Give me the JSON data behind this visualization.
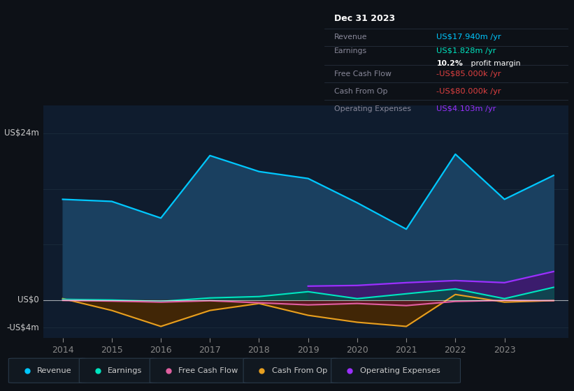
{
  "bg_color": "#0d1117",
  "plot_bg_color": "#0f1c2e",
  "grid_color": "#1a2a3a",
  "years": [
    2014,
    2015,
    2016,
    2017,
    2018,
    2019,
    2019.01,
    2020,
    2021,
    2022,
    2023,
    2023.99
  ],
  "years_all": [
    2014,
    2015,
    2016,
    2017,
    2018,
    2019,
    2020,
    2021,
    2022,
    2023,
    2024
  ],
  "revenue": [
    14.5,
    14.2,
    11.8,
    20.8,
    18.5,
    17.5,
    14.0,
    10.2,
    21.0,
    14.5,
    17.94
  ],
  "earnings": [
    0.1,
    0.0,
    -0.2,
    0.3,
    0.5,
    1.2,
    0.2,
    0.9,
    1.6,
    0.2,
    1.828
  ],
  "free_cash_flow": [
    -0.05,
    -0.15,
    -0.3,
    -0.1,
    -0.4,
    -0.7,
    -0.5,
    -0.8,
    -0.2,
    -0.05,
    -0.085
  ],
  "cash_from_op": [
    0.2,
    -1.5,
    -3.8,
    -1.5,
    -0.5,
    -2.2,
    -3.2,
    -3.8,
    0.8,
    -0.3,
    -0.08
  ],
  "operating_expenses_x": [
    2019,
    2020,
    2021,
    2022,
    2023,
    2024
  ],
  "operating_expenses_y": [
    2.0,
    2.1,
    2.5,
    2.8,
    2.5,
    4.103
  ],
  "revenue_color": "#00c8ff",
  "earnings_color": "#00e5c0",
  "fcf_color": "#e060a0",
  "cashop_color": "#e8a020",
  "opex_color": "#9b30ff",
  "revenue_fill": "#1a4060",
  "earnings_fill": "#005545",
  "fcf_fill": "#6a1030",
  "cashop_fill": "#4a2800",
  "opex_fill": "#3d1a6e",
  "ylim_min": -5.5,
  "ylim_max": 28,
  "zero_line_color": "#ffffff",
  "xlabel_years": [
    2014,
    2015,
    2016,
    2017,
    2018,
    2019,
    2020,
    2021,
    2022,
    2023
  ],
  "info_box": {
    "date": "Dec 31 2023",
    "revenue_label": "Revenue",
    "revenue_val": "US$17.940m",
    "revenue_unit": " /yr",
    "revenue_color": "#00c8ff",
    "earnings_label": "Earnings",
    "earnings_val": "US$1.828m",
    "earnings_unit": " /yr",
    "earnings_color": "#00e5c0",
    "margin_text": "10.2%",
    "margin_suffix": " profit margin",
    "fcf_label": "Free Cash Flow",
    "fcf_val": "-US$85.000k",
    "fcf_unit": " /yr",
    "fcf_color": "#e04040",
    "cashop_label": "Cash From Op",
    "cashop_val": "-US$80.000k",
    "cashop_unit": " /yr",
    "cashop_color": "#e04040",
    "opex_label": "Operating Expenses",
    "opex_val": "US$4.103m",
    "opex_unit": " /yr",
    "opex_color": "#9b30ff"
  },
  "legend_items": [
    {
      "label": "Revenue",
      "color": "#00c8ff"
    },
    {
      "label": "Earnings",
      "color": "#00e5c0"
    },
    {
      "label": "Free Cash Flow",
      "color": "#e060a0"
    },
    {
      "label": "Cash From Op",
      "color": "#e8a020"
    },
    {
      "label": "Operating Expenses",
      "color": "#9b30ff"
    }
  ]
}
